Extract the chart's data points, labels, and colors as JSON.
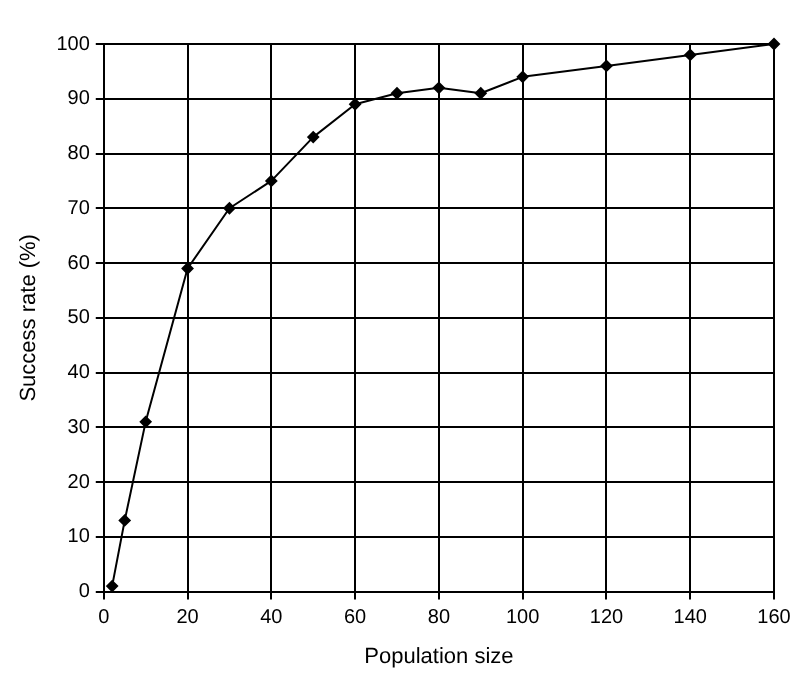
{
  "chart_data": {
    "type": "line",
    "xlabel": "Population size",
    "ylabel": "Success rate (%)",
    "x": [
      2,
      5,
      10,
      20,
      30,
      40,
      50,
      60,
      70,
      80,
      90,
      100,
      120,
      140,
      160
    ],
    "series": [
      {
        "color": "#000000",
        "values": [
          1,
          13,
          31,
          59,
          70,
          75,
          83,
          89,
          91,
          92,
          91,
          94,
          96,
          98,
          100
        ]
      }
    ],
    "xlim": [
      0,
      160
    ],
    "xticks": [
      0,
      20,
      40,
      60,
      80,
      100,
      120,
      140,
      160
    ],
    "ylim": [
      0,
      100
    ],
    "yticks": [
      0,
      10,
      20,
      30,
      40,
      50,
      60,
      70,
      80,
      90,
      100
    ],
    "grid": true,
    "legend": false,
    "marker": "diamond",
    "line_style": "solid"
  }
}
